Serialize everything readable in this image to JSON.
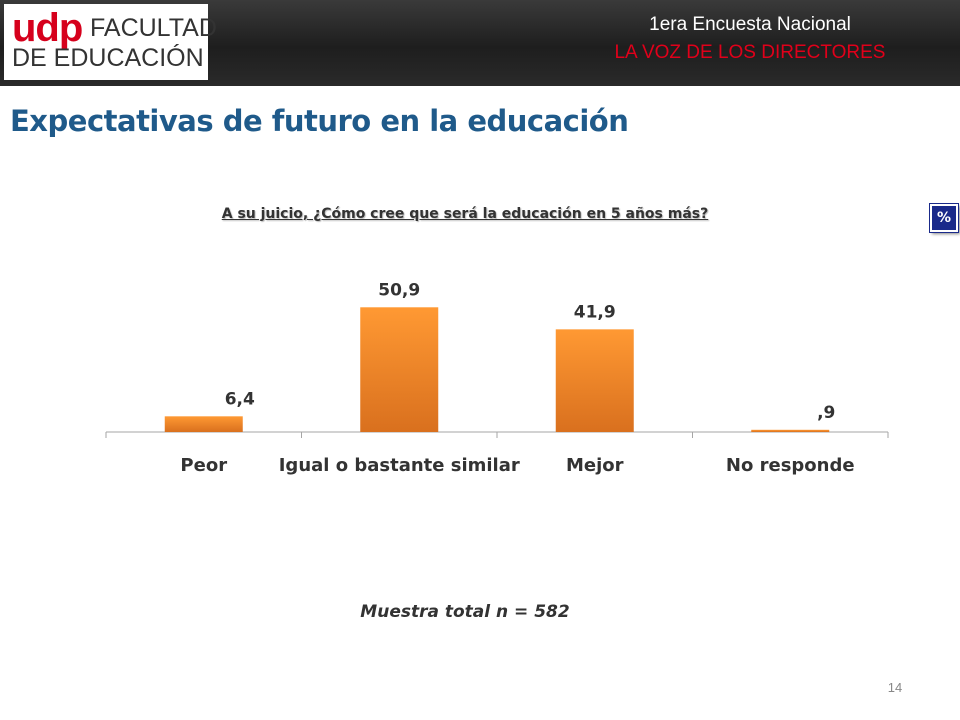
{
  "header": {
    "logo_udp": "udp",
    "logo_line1": "FACULTAD",
    "logo_line2": "DE EDUCACIÓN",
    "survey_title": "1era Encuesta Nacional",
    "survey_subtitle": "LA VOZ DE LOS DIRECTORES"
  },
  "page": {
    "title": "Expectativas de futuro en la educación",
    "question": "A su juicio, ¿Cómo cree que será la educación en 5 años más?",
    "unit_badge": "%",
    "sample": "Muestra total n = 582",
    "page_number": "14"
  },
  "colors": {
    "bar_top": "#ff9933",
    "bar_bottom": "#d9701e",
    "title": "#1f5a8a",
    "survey_subtitle": "#e0001a"
  },
  "chart_data": {
    "type": "bar",
    "categories": [
      "Peor",
      "Igual o bastante similar",
      "Mejor",
      "No responde"
    ],
    "values": [
      6.4,
      50.9,
      41.9,
      0.9
    ],
    "data_labels": [
      "6,4",
      "50,9",
      "41,9",
      ",9"
    ],
    "ylim": [
      0,
      60
    ],
    "grid": false,
    "legend": "none"
  }
}
